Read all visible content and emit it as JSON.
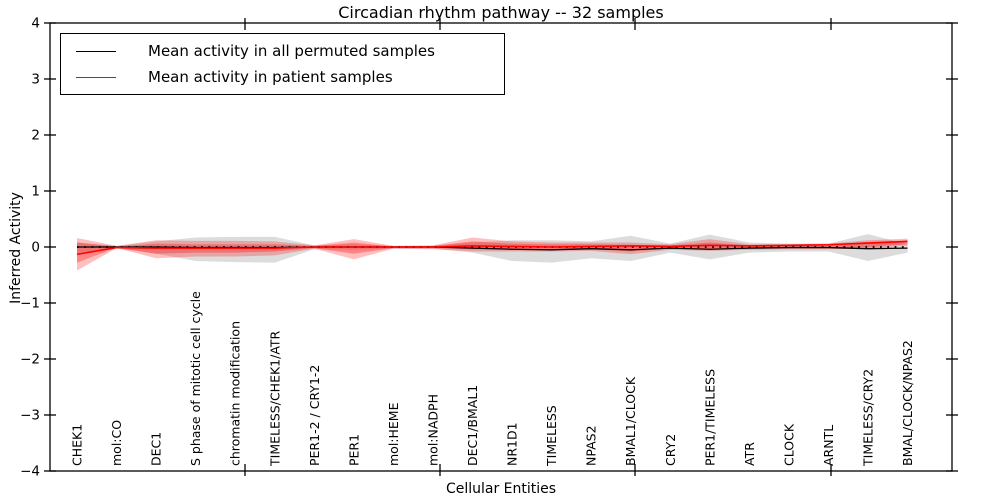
{
  "figure": {
    "title": "Circadian rhythm pathway -- 32 samples",
    "xlabel": "Cellular Entities",
    "ylabel": "Inferred Activity"
  },
  "legend": {
    "position": "upper left",
    "entries": [
      {
        "label": "Mean activity in all permuted samples",
        "color": "#000000"
      },
      {
        "label": "Mean activity in patient samples",
        "color": "#ff0000"
      }
    ]
  },
  "chart_data": {
    "type": "line",
    "title": "Circadian rhythm pathway -- 32 samples",
    "xlabel": "Cellular Entities",
    "ylabel": "Inferred Activity",
    "ylim": [
      -4,
      4
    ],
    "yticks": [
      4,
      3,
      2,
      1,
      0,
      -1,
      -2,
      -3,
      -4
    ],
    "grid": false,
    "legend_position": "upper left",
    "zero_line": {
      "style": "dotted",
      "color": "#000000"
    },
    "categories": [
      "CHEK1",
      "mol:CO",
      "DEC1",
      "S phase of mitotic cell cycle",
      "chromatin modification",
      "TIMELESS/CHEK1/ATR",
      "PER1-2 / CRY1-2",
      "PER1",
      "mol:HEME",
      "mol:NADPH",
      "DEC1/BMAL1",
      "NR1D1",
      "TIMELESS",
      "NPAS2",
      "BMAL1/CLOCK",
      "CRY2",
      "PER1/TIMELESS",
      "ATR",
      "CLOCK",
      "ARNTL",
      "TIMELESS/CRY2",
      "BMAL/CLOCK/NPAS2"
    ],
    "series": [
      {
        "name": "Mean activity in all permuted samples",
        "color": "#000000",
        "values": [
          0,
          0,
          0,
          -0.01,
          -0.01,
          -0.01,
          0,
          0,
          0,
          0,
          -0.02,
          -0.04,
          -0.05,
          -0.03,
          -0.05,
          -0.02,
          -0.04,
          -0.02,
          -0.01,
          -0.01,
          -0.03,
          -0.02
        ]
      },
      {
        "name": "Mean activity in patient samples",
        "color": "#ff0000",
        "values": [
          -0.13,
          -0.01,
          -0.02,
          -0.02,
          -0.02,
          -0.02,
          0,
          0,
          0,
          0,
          0.02,
          0.01,
          0,
          0.01,
          0.02,
          0.01,
          0.03,
          0.02,
          0.03,
          0.04,
          0.07,
          0.1
        ]
      }
    ],
    "bands": [
      {
        "name": "permuted-range",
        "color": "#808080",
        "opacity": 0.28,
        "lo": [
          -0.1,
          -0.02,
          -0.12,
          -0.25,
          -0.27,
          -0.28,
          -0.04,
          -0.05,
          -0.03,
          -0.03,
          -0.1,
          -0.25,
          -0.28,
          -0.2,
          -0.25,
          -0.1,
          -0.22,
          -0.1,
          -0.08,
          -0.08,
          -0.25,
          -0.1
        ],
        "hi": [
          0.08,
          0.02,
          0.1,
          0.17,
          0.18,
          0.18,
          0.03,
          0.05,
          0.02,
          0.02,
          0.08,
          0.12,
          0.12,
          0.1,
          0.2,
          0.06,
          0.22,
          0.08,
          0.06,
          0.06,
          0.23,
          0.05
        ]
      },
      {
        "name": "patient-range-outer",
        "color": "#ff0000",
        "opacity": 0.25,
        "lo": [
          -0.42,
          -0.02,
          -0.2,
          -0.17,
          -0.17,
          -0.15,
          -0.03,
          -0.22,
          -0.03,
          -0.04,
          -0.08,
          -0.08,
          -0.08,
          -0.07,
          -0.13,
          -0.05,
          -0.07,
          -0.05,
          -0.04,
          -0.04,
          -0.03,
          0.03
        ],
        "hi": [
          0.16,
          0.02,
          0.12,
          0.11,
          0.11,
          0.1,
          0.03,
          0.14,
          0.02,
          0.03,
          0.17,
          0.1,
          0.08,
          0.08,
          0.08,
          0.05,
          0.14,
          0.05,
          0.05,
          0.06,
          0.12,
          0.15
        ]
      },
      {
        "name": "patient-range-inner",
        "color": "#ff0000",
        "opacity": 0.3,
        "lo": [
          -0.28,
          -0.01,
          -0.12,
          -0.1,
          -0.1,
          -0.08,
          -0.02,
          -0.12,
          -0.02,
          -0.02,
          -0.04,
          -0.05,
          -0.05,
          -0.04,
          -0.08,
          -0.03,
          -0.03,
          -0.03,
          -0.02,
          -0.02,
          0.0,
          0.05
        ],
        "hi": [
          0.08,
          0.01,
          0.06,
          0.05,
          0.05,
          0.05,
          0.02,
          0.08,
          0.01,
          0.02,
          0.1,
          0.06,
          0.05,
          0.05,
          0.04,
          0.03,
          0.08,
          0.03,
          0.03,
          0.04,
          0.09,
          0.12
        ]
      }
    ]
  }
}
